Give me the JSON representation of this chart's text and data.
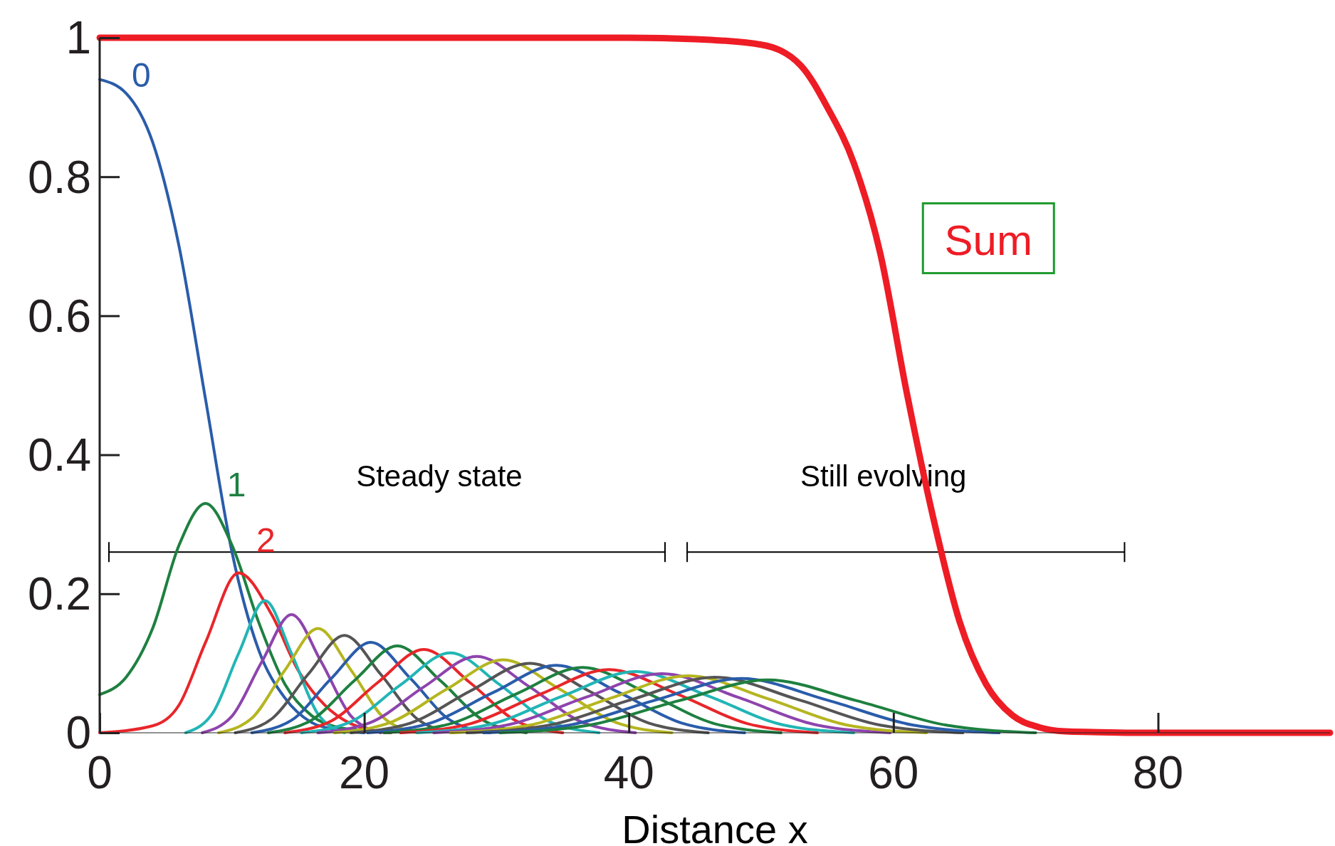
{
  "chart_data": {
    "type": "line",
    "xlabel": "Distance x",
    "xlim": [
      0,
      93
    ],
    "xticks": [
      0,
      20,
      40,
      60,
      80
    ],
    "ylim": [
      0,
      1
    ],
    "yticks": [
      0,
      0.2,
      0.4,
      0.6,
      0.8,
      1
    ],
    "grid": false,
    "line_style": "solid",
    "annotations": [
      "Steady state",
      "Still evolving"
    ],
    "series": [
      {
        "name": "0",
        "color": "#2a5caa",
        "x": [
          0,
          2,
          4,
          6,
          8,
          10,
          12,
          14,
          16,
          18,
          20
        ],
        "values": [
          0.94,
          0.92,
          0.85,
          0.7,
          0.48,
          0.26,
          0.12,
          0.05,
          0.015,
          0.004,
          0
        ]
      },
      {
        "name": "1",
        "color": "#1e8040",
        "x": [
          0,
          2,
          4,
          6,
          8,
          10,
          12,
          14,
          16,
          18,
          22
        ],
        "values": [
          0.055,
          0.08,
          0.15,
          0.27,
          0.33,
          0.27,
          0.16,
          0.07,
          0.025,
          0.008,
          0
        ]
      },
      {
        "name": "2",
        "color": "#e8262a",
        "x": [
          0,
          4,
          6,
          8,
          10.5,
          13,
          15,
          17,
          19,
          22
        ],
        "values": [
          0,
          0.01,
          0.04,
          0.13,
          0.23,
          0.17,
          0.09,
          0.04,
          0.013,
          0
        ]
      },
      {
        "color": "#22b5b5",
        "x": [
          6.5,
          8.5,
          10.5,
          12.5,
          14.5,
          16.5,
          18.5
        ],
        "values": [
          0,
          0.027,
          0.114,
          0.19,
          0.114,
          0.027,
          0
        ]
      },
      {
        "color": "#8e44ad",
        "x": [
          7.75,
          10,
          12.25,
          14.5,
          16.75,
          19,
          21.25
        ],
        "values": [
          0,
          0.024,
          0.102,
          0.17,
          0.102,
          0.024,
          0
        ]
      },
      {
        "color": "#b5b520",
        "x": [
          9,
          11.5,
          14,
          16.5,
          19,
          21.5,
          24
        ],
        "values": [
          0,
          0.021,
          0.09,
          0.15,
          0.09,
          0.021,
          0
        ]
      },
      {
        "color": "#555555",
        "x": [
          10.25,
          13,
          15.75,
          18.5,
          21.25,
          24,
          26.75
        ],
        "values": [
          0,
          0.02,
          0.084,
          0.14,
          0.084,
          0.02,
          0
        ]
      },
      {
        "color": "#2a5caa",
        "x": [
          11.5,
          14.5,
          17.5,
          20.5,
          23.5,
          26.5,
          29.5
        ],
        "values": [
          0,
          0.018,
          0.078,
          0.13,
          0.078,
          0.018,
          0
        ]
      },
      {
        "color": "#1e8040",
        "x": [
          12.75,
          16,
          19.25,
          22.5,
          25.75,
          29,
          32.25
        ],
        "values": [
          0,
          0.018,
          0.075,
          0.125,
          0.075,
          0.018,
          0
        ]
      },
      {
        "color": "#e8262a",
        "x": [
          14,
          17.5,
          21,
          24.5,
          28,
          31.5,
          35
        ],
        "values": [
          0,
          0.017,
          0.072,
          0.12,
          0.072,
          0.017,
          0
        ]
      },
      {
        "color": "#22b5b5",
        "x": [
          15.25,
          19,
          22.75,
          26.5,
          30.25,
          34,
          37.75
        ],
        "values": [
          0,
          0.016,
          0.069,
          0.115,
          0.069,
          0.016,
          0
        ]
      },
      {
        "color": "#8e44ad",
        "x": [
          16.5,
          20.5,
          24.5,
          28.5,
          32.5,
          36.5,
          40.5
        ],
        "values": [
          0,
          0.015,
          0.066,
          0.11,
          0.066,
          0.015,
          0
        ]
      },
      {
        "color": "#b5b520",
        "x": [
          17.75,
          22,
          26.25,
          30.5,
          34.75,
          39,
          43.25
        ],
        "values": [
          0,
          0.015,
          0.063,
          0.105,
          0.063,
          0.015,
          0
        ]
      },
      {
        "color": "#555555",
        "x": [
          19,
          23.5,
          28,
          32.5,
          37,
          41.5,
          46
        ],
        "values": [
          0,
          0.014,
          0.06,
          0.1,
          0.06,
          0.014,
          0
        ]
      },
      {
        "color": "#2a5caa",
        "x": [
          20.25,
          25,
          29.75,
          34.5,
          39.25,
          44,
          48.75
        ],
        "values": [
          0,
          0.014,
          0.058,
          0.097,
          0.058,
          0.014,
          0
        ]
      },
      {
        "color": "#1e8040",
        "x": [
          21.5,
          26.5,
          31.5,
          36.5,
          41.5,
          46.5,
          51.5
        ],
        "values": [
          0,
          0.013,
          0.056,
          0.094,
          0.056,
          0.013,
          0
        ]
      },
      {
        "color": "#e8262a",
        "x": [
          22.75,
          28,
          33.25,
          38.5,
          43.75,
          49,
          54.25
        ],
        "values": [
          0,
          0.013,
          0.055,
          0.091,
          0.055,
          0.013,
          0
        ]
      },
      {
        "color": "#22b5b5",
        "x": [
          24,
          29.5,
          35,
          40.5,
          46,
          51.5,
          57
        ],
        "values": [
          0,
          0.012,
          0.053,
          0.088,
          0.053,
          0.012,
          0
        ]
      },
      {
        "color": "#8e44ad",
        "x": [
          25.25,
          31,
          36.75,
          42.5,
          48.25,
          54,
          59.75
        ],
        "values": [
          0,
          0.012,
          0.051,
          0.085,
          0.051,
          0.012,
          0
        ]
      },
      {
        "color": "#b5b520",
        "x": [
          26.5,
          32.5,
          38.5,
          44.5,
          50.5,
          56.5,
          62.5
        ],
        "values": [
          0,
          0.011,
          0.049,
          0.082,
          0.049,
          0.011,
          0
        ]
      },
      {
        "color": "#555555",
        "x": [
          27.75,
          34,
          40.25,
          46.5,
          52.75,
          59,
          65.25
        ],
        "values": [
          0,
          0.011,
          0.048,
          0.08,
          0.048,
          0.011,
          0
        ]
      },
      {
        "color": "#2a5caa",
        "x": [
          29,
          35.5,
          42,
          48.5,
          55,
          61.5,
          68
        ],
        "values": [
          0,
          0.011,
          0.047,
          0.078,
          0.047,
          0.011,
          0
        ]
      },
      {
        "color": "#1e8040",
        "x": [
          30.25,
          37,
          43.75,
          50.5,
          57.25,
          64,
          70.75
        ],
        "values": [
          0,
          0.011,
          0.046,
          0.076,
          0.046,
          0.011,
          0
        ]
      },
      {
        "name": "Sum",
        "color": "#ee1c25",
        "x": [
          0,
          10,
          20,
          30,
          40,
          45,
          50,
          53,
          55,
          57,
          59,
          61,
          63,
          65,
          67,
          69,
          71,
          73,
          75,
          78,
          93
        ],
        "values": [
          1,
          1,
          1,
          1,
          1,
          0.998,
          0.99,
          0.96,
          0.9,
          0.82,
          0.69,
          0.49,
          0.31,
          0.16,
          0.07,
          0.025,
          0.008,
          0.002,
          0.001,
          0,
          0
        ]
      }
    ]
  }
}
